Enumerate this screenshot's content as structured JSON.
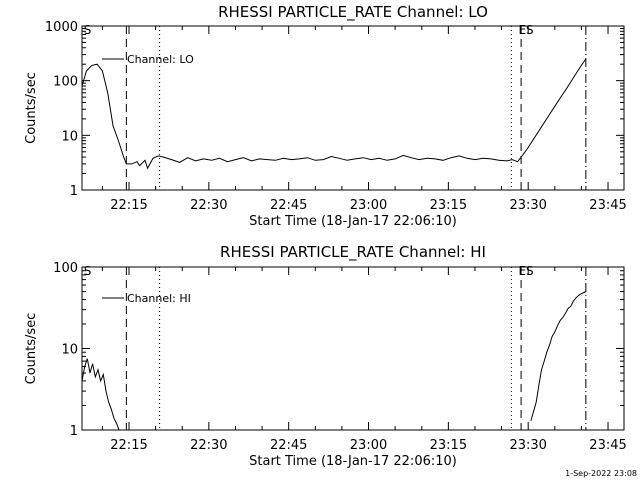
{
  "chart_data": [
    {
      "type": "line",
      "title": "RHESSI PARTICLE_RATE Channel: LO",
      "xlabel": "Start Time (18-Jan-17 22:06:10)",
      "ylabel": "Counts/sec",
      "yscale": "log",
      "ylim": [
        1,
        1000
      ],
      "xlim": [
        "22:06:10",
        "23:48:00"
      ],
      "x_tick_labels": [
        "22:15",
        "22:30",
        "22:45",
        "23:00",
        "23:15",
        "23:30",
        "23:45"
      ],
      "y_tick_labels": [
        "1",
        "10",
        "100",
        "1000"
      ],
      "grid": false,
      "legend": "top-left",
      "vertical_markers": [
        {
          "x": "22:14:30",
          "style": "dashed"
        },
        {
          "x": "22:20:45",
          "style": "dotted"
        },
        {
          "x": "23:26:50",
          "style": "dotted"
        },
        {
          "x": "23:28:40",
          "style": "dashed"
        },
        {
          "x": "23:40:50",
          "style": "dashdot"
        }
      ],
      "annotations": [
        {
          "text": "S",
          "x": "22:06:30"
        },
        {
          "text": "ES",
          "x": "23:28:10"
        }
      ],
      "series": [
        {
          "name": "Channel: LO",
          "x": [
            "22:06:10",
            "22:07:00",
            "22:08:00",
            "22:09:00",
            "22:10:00",
            "22:11:00",
            "22:11:30",
            "22:12:00",
            "22:13:00",
            "22:14:00",
            "22:14:30",
            "22:15:30",
            "22:16:30",
            "22:17:00",
            "22:18:00",
            "22:18:30",
            "22:19:30",
            "22:20:30",
            "22:21:30",
            "22:23:00",
            "22:24:30",
            "22:26:00",
            "22:27:30",
            "22:29:00",
            "22:30:30",
            "22:32:00",
            "22:33:30",
            "22:35:00",
            "22:36:30",
            "22:38:00",
            "22:39:30",
            "22:41:00",
            "22:42:30",
            "22:44:00",
            "22:45:30",
            "22:47:00",
            "22:48:30",
            "22:50:00",
            "22:51:30",
            "22:53:00",
            "22:54:30",
            "22:56:00",
            "22:57:30",
            "22:59:00",
            "23:00:30",
            "23:02:00",
            "23:03:30",
            "23:05:00",
            "23:06:30",
            "23:08:00",
            "23:09:30",
            "23:11:00",
            "23:12:30",
            "23:14:00",
            "23:15:30",
            "23:17:00",
            "23:18:30",
            "23:20:00",
            "23:21:30",
            "23:23:00",
            "23:24:30",
            "23:26:00",
            "23:27:00",
            "23:28:00",
            "23:28:30",
            "23:29:00",
            "23:30:00",
            "23:31:00",
            "23:32:00",
            "23:33:00",
            "23:34:00",
            "23:35:00",
            "23:36:00",
            "23:37:00",
            "23:38:00",
            "23:39:00",
            "23:40:00",
            "23:40:50"
          ],
          "values": [
            80,
            150,
            190,
            200,
            150,
            60,
            30,
            15,
            8,
            4,
            3,
            3,
            3.3,
            2.8,
            3.5,
            2.5,
            3.8,
            4.2,
            4,
            3.6,
            3.2,
            3.9,
            3.4,
            3.7,
            3.5,
            3.8,
            3.3,
            3.6,
            3.9,
            3.4,
            3.7,
            3.6,
            3.5,
            3.8,
            3.6,
            3.7,
            3.9,
            3.5,
            3.6,
            4.1,
            3.8,
            3.5,
            3.7,
            3.9,
            3.6,
            3.8,
            3.5,
            3.7,
            4.3,
            3.9,
            3.6,
            3.8,
            3.7,
            3.5,
            3.9,
            4.2,
            3.8,
            3.6,
            3.8,
            3.7,
            3.5,
            3.4,
            3.6,
            3.3,
            3.8,
            4.4,
            6,
            8.5,
            12,
            17,
            24,
            34,
            48,
            67,
            95,
            135,
            190,
            250
          ]
        }
      ]
    },
    {
      "type": "line",
      "title": "RHESSI PARTICLE_RATE Channel: HI",
      "xlabel": "Start Time (18-Jan-17 22:06:10)",
      "ylabel": "Counts/sec",
      "yscale": "log",
      "ylim": [
        1,
        100
      ],
      "xlim": [
        "22:06:10",
        "23:48:00"
      ],
      "x_tick_labels": [
        "22:15",
        "22:30",
        "22:45",
        "23:00",
        "23:15",
        "23:30",
        "23:45"
      ],
      "y_tick_labels": [
        "1",
        "10",
        "100"
      ],
      "grid": false,
      "legend": "top-left",
      "vertical_markers": [
        {
          "x": "22:14:30",
          "style": "dashed"
        },
        {
          "x": "22:20:45",
          "style": "dotted"
        },
        {
          "x": "23:26:50",
          "style": "dotted"
        },
        {
          "x": "23:28:40",
          "style": "dashed"
        },
        {
          "x": "23:40:50",
          "style": "dashdot"
        }
      ],
      "annotations": [
        {
          "text": "S",
          "x": "22:06:30"
        },
        {
          "text": "ES",
          "x": "23:28:10"
        }
      ],
      "series": [
        {
          "name": "Channel: HI",
          "x": [
            "22:06:10",
            "22:06:40",
            "22:07:10",
            "22:07:40",
            "22:08:10",
            "22:08:40",
            "22:09:10",
            "22:09:40",
            "22:10:10",
            "22:10:40",
            "22:11:10",
            "22:11:40",
            "22:12:10",
            "22:12:40",
            "22:13:00",
            "22:13:20"
          ],
          "values": [
            4,
            6,
            7.5,
            5,
            6.5,
            4.5,
            5.5,
            4,
            4.8,
            3,
            2.2,
            1.8,
            1.4,
            1.2,
            1.05,
            0.9
          ],
          "segment2_x": [
            "23:30:30",
            "23:31:30",
            "23:32:00",
            "23:32:30",
            "23:33:00",
            "23:33:30",
            "23:34:00",
            "23:34:30",
            "23:35:00",
            "23:35:30",
            "23:36:00",
            "23:36:30",
            "23:37:00",
            "23:37:30",
            "23:38:00",
            "23:38:30",
            "23:39:00",
            "23:39:30",
            "23:40:00",
            "23:40:50"
          ],
          "segment2_values": [
            1.3,
            2.2,
            3.5,
            5.5,
            7,
            9,
            11,
            14,
            16,
            19,
            22,
            24,
            27,
            31,
            33,
            38,
            42,
            45,
            47,
            50
          ]
        }
      ]
    }
  ],
  "footer": {
    "timestamp": "1-Sep-2022 23:08"
  }
}
